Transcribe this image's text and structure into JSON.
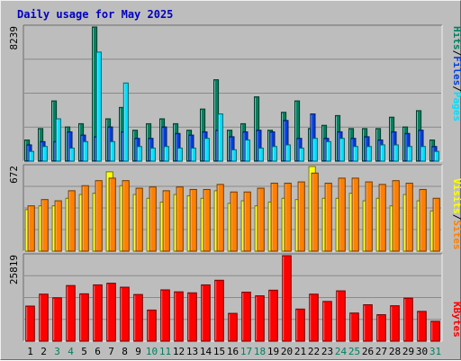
{
  "colors": {
    "background": "#bdbdbd",
    "title": "#0000c0",
    "hits": "#008060",
    "files": "#0040e0",
    "pages": "#00e0ff",
    "visits": "#ffff00",
    "sites": "#ff8000",
    "kbytes": "#ff0000",
    "weekend_day": "#008060",
    "weekday": "#000000"
  },
  "chart_data": [
    {
      "type": "bar",
      "title": "Daily usage for May 2025",
      "ylabel_parts": [
        "Pages",
        "Files",
        "Hits"
      ],
      "ymax_label": "8239",
      "ylim": [
        0,
        8239
      ],
      "categories": [
        "1",
        "2",
        "3",
        "4",
        "5",
        "6",
        "7",
        "8",
        "9",
        "10",
        "11",
        "12",
        "13",
        "14",
        "15",
        "16",
        "17",
        "18",
        "19",
        "20",
        "21",
        "22",
        "23",
        "24",
        "25",
        "26",
        "27",
        "28",
        "29",
        "30",
        "31"
      ],
      "weekend_days": [
        3,
        4,
        10,
        11,
        17,
        18,
        24,
        25,
        31
      ],
      "series": [
        {
          "name": "Hits",
          "values": [
            1300,
            2000,
            3700,
            2100,
            2300,
            8239,
            2600,
            3300,
            1900,
            2300,
            2600,
            2300,
            1900,
            3200,
            5000,
            1900,
            2300,
            3950,
            1900,
            3000,
            3700,
            2000,
            2200,
            2800,
            2000,
            2000,
            2000,
            2700,
            2100,
            3100,
            1300
          ]
        },
        {
          "name": "Files",
          "values": [
            1000,
            1200,
            1200,
            1800,
            1600,
            1500,
            2100,
            1800,
            1400,
            1400,
            2100,
            1700,
            1600,
            1800,
            1900,
            1500,
            1800,
            1900,
            1800,
            2500,
            1400,
            2900,
            1400,
            1800,
            1400,
            1500,
            1300,
            1800,
            1700,
            1900,
            900
          ]
        },
        {
          "name": "Pages",
          "values": [
            600,
            900,
            2600,
            800,
            1200,
            6700,
            1200,
            4800,
            900,
            800,
            900,
            800,
            800,
            1400,
            2900,
            700,
            1300,
            800,
            900,
            1000,
            800,
            1400,
            1200,
            1400,
            900,
            900,
            1000,
            1000,
            900,
            900,
            600
          ]
        }
      ]
    },
    {
      "type": "bar",
      "ylabel_parts": [
        "Sites",
        "Visits"
      ],
      "ymax_label": "672",
      "ylim": [
        0,
        672
      ],
      "categories": [
        "1",
        "2",
        "3",
        "4",
        "5",
        "6",
        "7",
        "8",
        "9",
        "10",
        "11",
        "12",
        "13",
        "14",
        "15",
        "16",
        "17",
        "18",
        "19",
        "20",
        "21",
        "22",
        "23",
        "24",
        "25",
        "26",
        "27",
        "28",
        "29",
        "30",
        "31"
      ],
      "series": [
        {
          "name": "Visits",
          "values": [
            330,
            360,
            360,
            420,
            450,
            460,
            630,
            520,
            450,
            420,
            390,
            450,
            440,
            420,
            480,
            380,
            400,
            360,
            390,
            420,
            410,
            672,
            420,
            420,
            460,
            400,
            420,
            360,
            450,
            400,
            320
          ]
        },
        {
          "name": "Sites",
          "values": [
            360,
            410,
            400,
            480,
            520,
            560,
            580,
            560,
            500,
            510,
            480,
            510,
            490,
            490,
            530,
            470,
            470,
            500,
            540,
            540,
            550,
            620,
            540,
            580,
            580,
            550,
            530,
            560,
            540,
            490,
            420
          ]
        }
      ]
    },
    {
      "type": "bar",
      "ylabel": "KBytes",
      "ymax_label": "25819",
      "ylim": [
        0,
        25819
      ],
      "categories": [
        "1",
        "2",
        "3",
        "4",
        "5",
        "6",
        "7",
        "8",
        "9",
        "10",
        "11",
        "12",
        "13",
        "14",
        "15",
        "16",
        "17",
        "18",
        "19",
        "20",
        "21",
        "22",
        "23",
        "24",
        "25",
        "26",
        "27",
        "28",
        "29",
        "30",
        "31"
      ],
      "series": [
        {
          "name": "KBytes",
          "values": [
            10600,
            14200,
            13100,
            16800,
            14300,
            17000,
            17500,
            16300,
            14100,
            9400,
            15500,
            14900,
            14600,
            17000,
            18400,
            8400,
            14800,
            13700,
            15400,
            25819,
            9700,
            14200,
            12000,
            15200,
            8500,
            11000,
            8000,
            10700,
            13000,
            9000,
            6000
          ]
        }
      ]
    }
  ]
}
